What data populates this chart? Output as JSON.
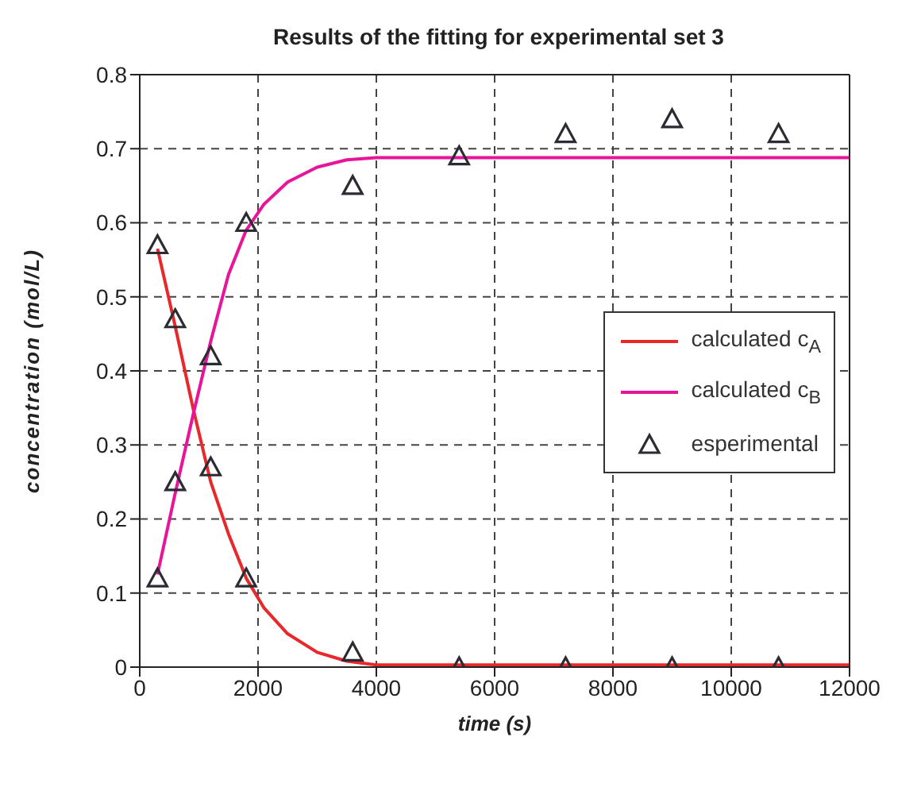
{
  "chart_data": {
    "type": "line",
    "title": "Results of the fitting for experimental set 3",
    "xlabel": "time (s)",
    "ylabel": "concentration (mol/L)",
    "xlim": [
      0,
      12000
    ],
    "xticks": [
      0,
      2000,
      4000,
      6000,
      8000,
      10000,
      12000
    ],
    "ylim": [
      0,
      0.8
    ],
    "yticks": [
      0,
      0.1,
      0.2,
      0.3,
      0.4,
      0.5,
      0.6,
      0.7,
      0.8
    ],
    "grid": true,
    "legend": "right",
    "line_style": "solid",
    "series": [
      {
        "name": "calculated c$_{A}$",
        "color": "#e8282b",
        "marker": "none",
        "x": [
          300,
          600,
          900,
          1200,
          1500,
          1800,
          2100,
          2500,
          3000,
          3500,
          4000,
          12000
        ],
        "values": [
          0.565,
          0.46,
          0.35,
          0.25,
          0.18,
          0.12,
          0.08,
          0.045,
          0.02,
          0.008,
          0.003,
          0.003
        ]
      },
      {
        "name": "calculated c$_{B}$",
        "color": "#e8149a",
        "marker": "none",
        "x": [
          300,
          600,
          900,
          1200,
          1500,
          1800,
          2100,
          2500,
          3000,
          3500,
          4000,
          12000
        ],
        "values": [
          0.125,
          0.235,
          0.34,
          0.44,
          0.53,
          0.59,
          0.625,
          0.655,
          0.675,
          0.685,
          0.688,
          0.688
        ]
      },
      {
        "name": "esperimental",
        "type": "scatter",
        "color": "#2b2b33",
        "marker": "triangle",
        "x": [
          300,
          600,
          1200,
          1800,
          3600,
          5400,
          7200,
          9000,
          10800,
          300,
          600,
          1200,
          1800,
          3600,
          5400,
          7200,
          9000,
          10800
        ],
        "values": [
          0.57,
          0.47,
          0.27,
          0.12,
          0.02,
          0,
          0,
          0,
          0,
          0.12,
          0.25,
          0.42,
          0.6,
          0.65,
          0.69,
          0.72,
          0.74,
          0.72
        ]
      }
    ]
  }
}
